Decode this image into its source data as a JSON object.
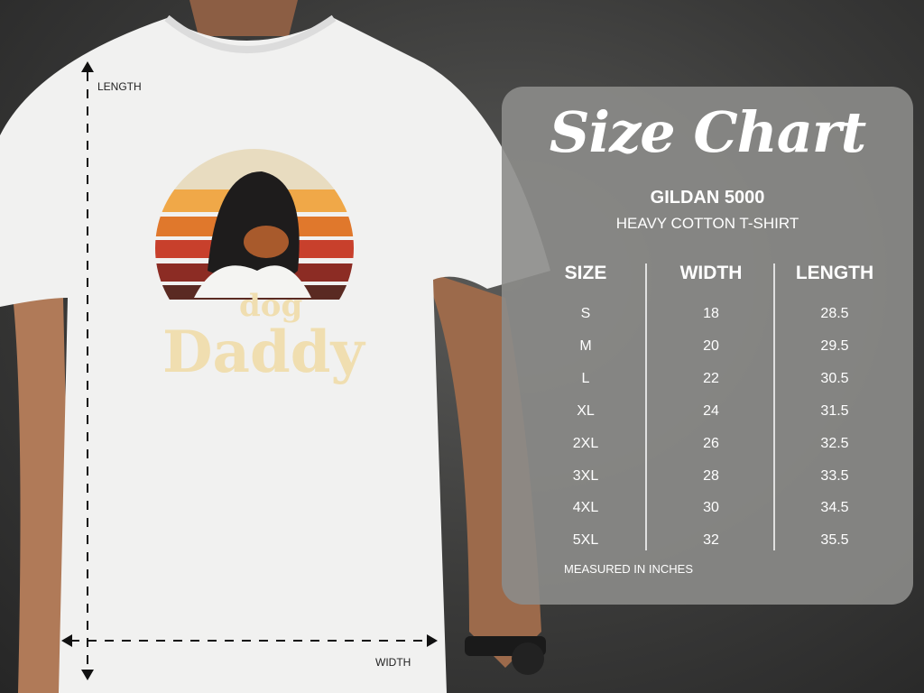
{
  "measure_labels": {
    "length": "LENGTH",
    "width": "WIDTH"
  },
  "graphic": {
    "line1": "dog",
    "line2": "Daddy"
  },
  "size_chart": {
    "title": "Size Chart",
    "brand": "GILDAN 5000",
    "product": "HEAVY COTTON T-SHIRT",
    "headers": [
      "SIZE",
      "WIDTH",
      "LENGTH"
    ],
    "rows": [
      [
        "S",
        "18",
        "28.5"
      ],
      [
        "M",
        "20",
        "29.5"
      ],
      [
        "L",
        "22",
        "30.5"
      ],
      [
        "XL",
        "24",
        "31.5"
      ],
      [
        "2XL",
        "26",
        "32.5"
      ],
      [
        "3XL",
        "28",
        "33.5"
      ],
      [
        "4XL",
        "30",
        "34.5"
      ],
      [
        "5XL",
        "32",
        "35.5"
      ]
    ],
    "note": "MEASURED IN INCHES"
  }
}
